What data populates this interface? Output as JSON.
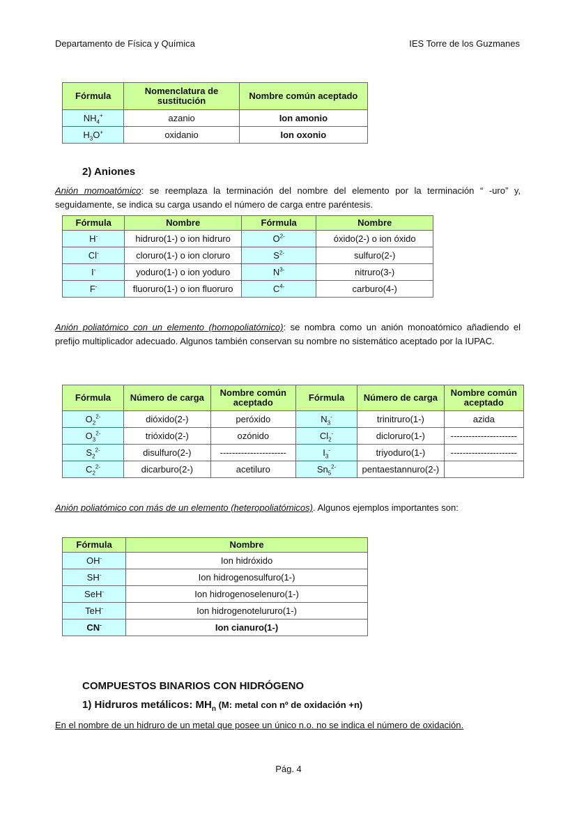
{
  "header": {
    "left": "Departamento de Física y Química",
    "right": "IES Torre de los Guzmanes"
  },
  "table1": {
    "headers": [
      "Fórmula",
      "Nomenclatura de sustitución",
      "Nombre común aceptado"
    ],
    "rows": [
      [
        [
          {
            "t": "NH"
          },
          {
            "sub": "4"
          },
          {
            "sup": "+"
          }
        ],
        "azanio",
        "Ion amonio"
      ],
      [
        [
          {
            "t": "H"
          },
          {
            "sub": "3"
          },
          {
            "t": "O"
          },
          {
            "sup": "+"
          }
        ],
        "oxidanio",
        "Ion oxonio"
      ]
    ]
  },
  "aniones": {
    "title": "2) Aniones",
    "mono_label": "Anión momoatómico",
    "mono_text": ": se reemplaza la terminación del nombre del elemento por la terminación “ -uro”  y, seguidamente, se indica su carga usando el número de carga entre paréntesis."
  },
  "table2": {
    "headers": [
      "Fórmula",
      "Nombre",
      "Fórmula",
      "Nombre"
    ],
    "rows": [
      [
        [
          {
            "t": "H"
          },
          {
            "sup": "-"
          }
        ],
        "hidruro(1-) o ion hidruro",
        [
          {
            "t": "O"
          },
          {
            "sup": "2-"
          }
        ],
        "óxido(2-) o ion óxido"
      ],
      [
        [
          {
            "t": "Cl"
          },
          {
            "sup": "-"
          }
        ],
        "cloruro(1-) o ion cloruro",
        [
          {
            "t": "S"
          },
          {
            "sup": "2-"
          }
        ],
        "sulfuro(2-)"
      ],
      [
        [
          {
            "t": "I"
          },
          {
            "sup": "-"
          }
        ],
        "yoduro(1-) o ion yoduro",
        [
          {
            "t": "N"
          },
          {
            "sup": "3-"
          }
        ],
        "nitruro(3-)"
      ],
      [
        [
          {
            "t": "F"
          },
          {
            "sup": "-"
          }
        ],
        "fluoruro(1-) o ion fluoruro",
        [
          {
            "t": "C"
          },
          {
            "sup": "4-"
          }
        ],
        "carburo(4-)"
      ]
    ]
  },
  "homo": {
    "label": "Anión  poliatómico con un elemento (homopoliatómico)",
    "text": ":  se nombra como un anión monoatómico añadiendo el prefijo multiplicador adecuado. Algunos también conservan su nombre no sistemático aceptado por la IUPAC."
  },
  "table3": {
    "headers": [
      "Fórmula",
      "Número de carga",
      "Nombre común aceptado",
      "Fórmula",
      "Número de carga",
      "Nombre común aceptado"
    ],
    "rows": [
      [
        [
          {
            "t": "O"
          },
          {
            "sub": "2"
          },
          {
            "sup": "2-"
          }
        ],
        "dióxido(2-)",
        "peróxido",
        [
          {
            "t": "N"
          },
          {
            "sub": "3"
          },
          {
            "sup": "-"
          }
        ],
        "trinitruro(1-)",
        "azida"
      ],
      [
        [
          {
            "t": "O"
          },
          {
            "sub": "3"
          },
          {
            "sup": "2-"
          }
        ],
        "trióxido(2-)",
        "ozónido",
        [
          {
            "t": "Cl"
          },
          {
            "sub": "2"
          },
          {
            "sup": "-"
          }
        ],
        "dicloruro(1-)",
        "----------------------"
      ],
      [
        [
          {
            "t": "S"
          },
          {
            "sub": "2"
          },
          {
            "sup": "2-"
          }
        ],
        "disulfuro(2-)",
        "----------------------",
        [
          {
            "t": "I"
          },
          {
            "sub": "3"
          },
          {
            "sup": "-"
          }
        ],
        "triyoduro(1-)",
        "----------------------"
      ],
      [
        [
          {
            "t": "C"
          },
          {
            "sub": "2"
          },
          {
            "sup": "2-"
          }
        ],
        "dicarburo(2-)",
        "acetiluro",
        [
          {
            "t": "Sn"
          },
          {
            "sub": "5"
          },
          {
            "sup": "2-"
          }
        ],
        "pentaestannuro(2-)",
        ""
      ]
    ]
  },
  "hetero": {
    "label": "Anión poliatómico con más de un elemento (heteropoliatómicos)",
    "text": ". Algunos ejemplos importantes son:"
  },
  "table4": {
    "headers": [
      "Fórmula",
      "Nombre"
    ],
    "rows": [
      [
        [
          {
            "t": "OH"
          },
          {
            "sup": "-"
          }
        ],
        "Ion hidróxido"
      ],
      [
        [
          {
            "t": "SH"
          },
          {
            "sup": "-"
          }
        ],
        "Ion hidrogenosulfuro(1-)"
      ],
      [
        [
          {
            "t": "SeH"
          },
          {
            "sup": "-"
          }
        ],
        "Ion hidrogenoselenuro(1-)"
      ],
      [
        [
          {
            "t": "TeH"
          },
          {
            "sup": "-"
          }
        ],
        "Ion hidrogenotelururo(1-)"
      ],
      [
        [
          {
            "t": "CN"
          },
          {
            "sup": "-"
          }
        ],
        "Ion cianuro(1-)"
      ]
    ]
  },
  "binarios": {
    "title": "COMPUESTOS BINARIOS CON  HIDRÓGENO",
    "sub_title_a": "1) Hidruros metálicos: MH",
    "sub_title_n": "n",
    "sub_title_b": " (M: metal con nº de oxidación +n)",
    "note": "En el nombre de un hidruro de un metal que posee un único n.o. no se indica el número de oxidación."
  },
  "footer": {
    "page": "Pág. 4"
  },
  "colors": {
    "header_bg": "#ccff99",
    "formula_bg": "#ccffff"
  }
}
